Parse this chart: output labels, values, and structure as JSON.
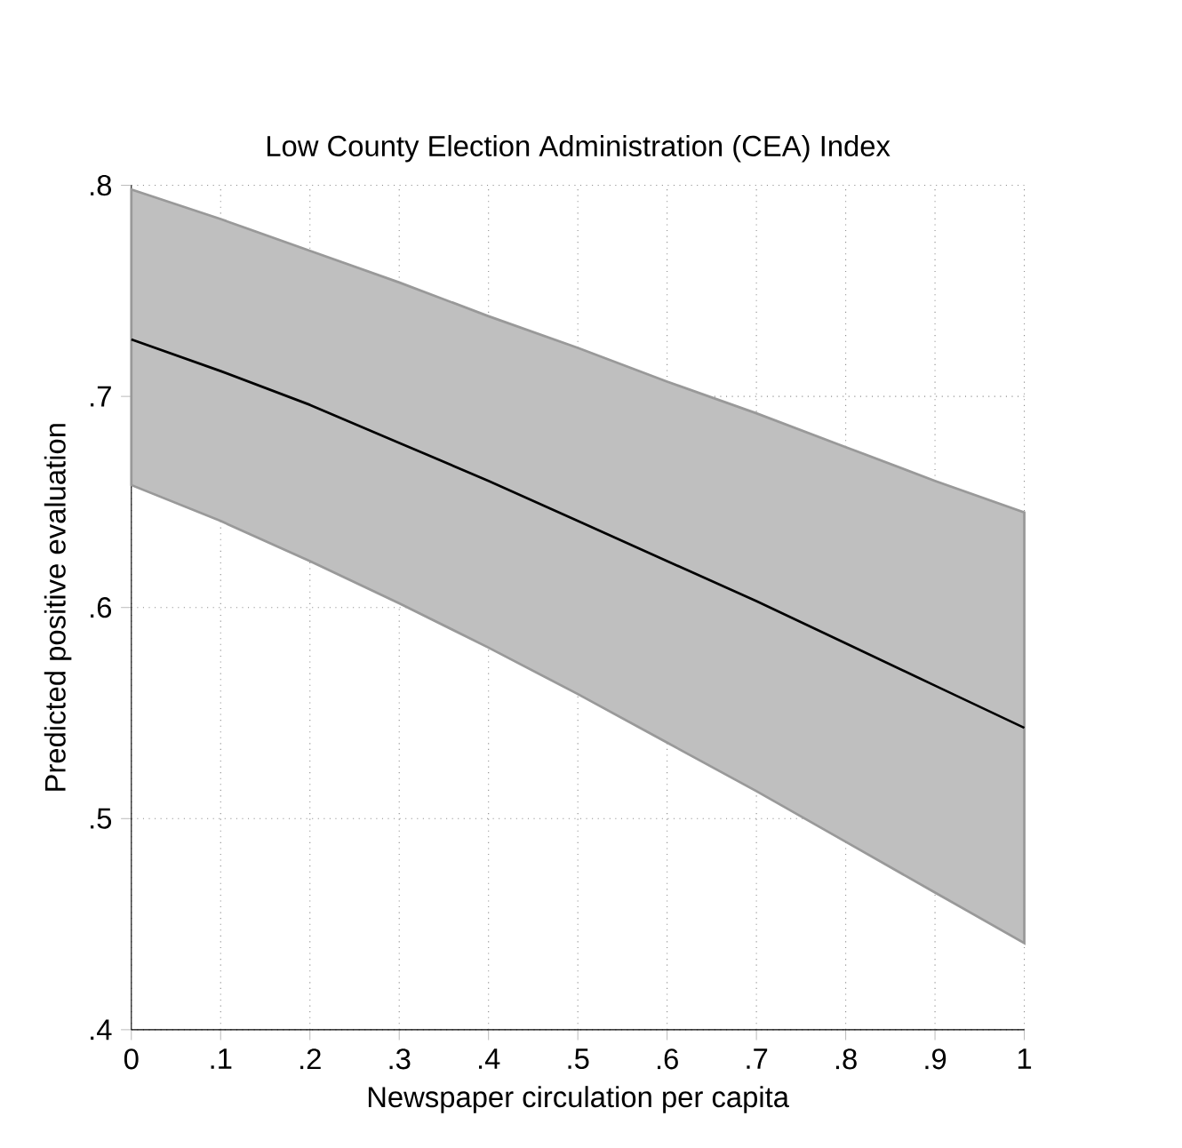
{
  "chart_data": {
    "type": "line",
    "title": "Low County Election Administration (CEA) Index",
    "xlabel": "Newspaper circulation per capita",
    "ylabel": "Predicted positive evaluation",
    "x": [
      0,
      0.1,
      0.2,
      0.3,
      0.4,
      0.5,
      0.6,
      0.7,
      0.8,
      0.9,
      1
    ],
    "series": [
      {
        "color": "#000000",
        "values": [
          0.727,
          0.712,
          0.696,
          0.678,
          0.66,
          0.641,
          0.622,
          0.603,
          0.583,
          0.563,
          0.543
        ],
        "upper": [
          0.798,
          0.784,
          0.769,
          0.754,
          0.738,
          0.723,
          0.707,
          0.692,
          0.676,
          0.66,
          0.645
        ],
        "lower": [
          0.658,
          0.641,
          0.622,
          0.602,
          0.581,
          0.559,
          0.536,
          0.513,
          0.489,
          0.465,
          0.441
        ]
      }
    ],
    "xlim": [
      0,
      1
    ],
    "ylim": [
      0.4,
      0.8
    ],
    "xticks": [
      0,
      {
        "value": 0.1,
        "label": ".1"
      },
      {
        "value": 0.2,
        "label": ".2"
      },
      {
        "value": 0.3,
        "label": ".3"
      },
      {
        "value": 0.4,
        "label": ".4"
      },
      {
        "value": 0.5,
        "label": ".5"
      },
      {
        "value": 0.6,
        "label": ".6"
      },
      {
        "value": 0.7,
        "label": ".7"
      },
      {
        "value": 0.8,
        "label": ".8"
      },
      {
        "value": 0.9,
        "label": ".9"
      },
      1
    ],
    "yticks": [
      {
        "value": 0.4,
        "label": ".4"
      },
      {
        "value": 0.5,
        "label": ".5"
      },
      {
        "value": 0.6,
        "label": ".6"
      },
      {
        "value": 0.7,
        "label": ".7"
      },
      {
        "value": 0.8,
        "label": ".8"
      }
    ],
    "grid": true,
    "line_style": "solid"
  }
}
